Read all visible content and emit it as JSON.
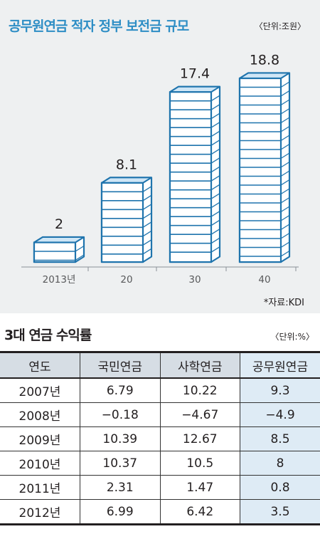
{
  "chart_data": {
    "type": "bar",
    "title": "공무원연금 적자 정부 보전금 규모",
    "unit": "〈단위:조원〉",
    "categories": [
      "2013년",
      "20",
      "30",
      "40"
    ],
    "values": [
      2,
      8.1,
      17.4,
      18.8
    ],
    "value_labels": [
      "2",
      "8.1",
      "17.4",
      "18.8"
    ],
    "source": "*자료:KDI",
    "colors": {
      "title": "#2e8ec5",
      "bar_outline": "#1f74ad",
      "bar_fill": "#ffffff",
      "bar_top": "#cfe6f6"
    }
  },
  "table": {
    "title": "3대 연금 수익률",
    "unit": "〈단위:%〉",
    "headers": [
      "연도",
      "국민연금",
      "사학연금",
      "공무원연금"
    ],
    "rows": [
      [
        "2007년",
        "6.79",
        "10.22",
        "9.3"
      ],
      [
        "2008년",
        "−0.18",
        "−4.67",
        "−4.9"
      ],
      [
        "2009년",
        "10.39",
        "12.67",
        "8.5"
      ],
      [
        "2010년",
        "10.37",
        "10.5",
        "8"
      ],
      [
        "2011년",
        "2.31",
        "1.47",
        "0.8"
      ],
      [
        "2012년",
        "6.99",
        "6.42",
        "3.5"
      ]
    ],
    "colors": {
      "header_bg": "#d6dde4",
      "highlight_bg": "#deebf5"
    }
  }
}
